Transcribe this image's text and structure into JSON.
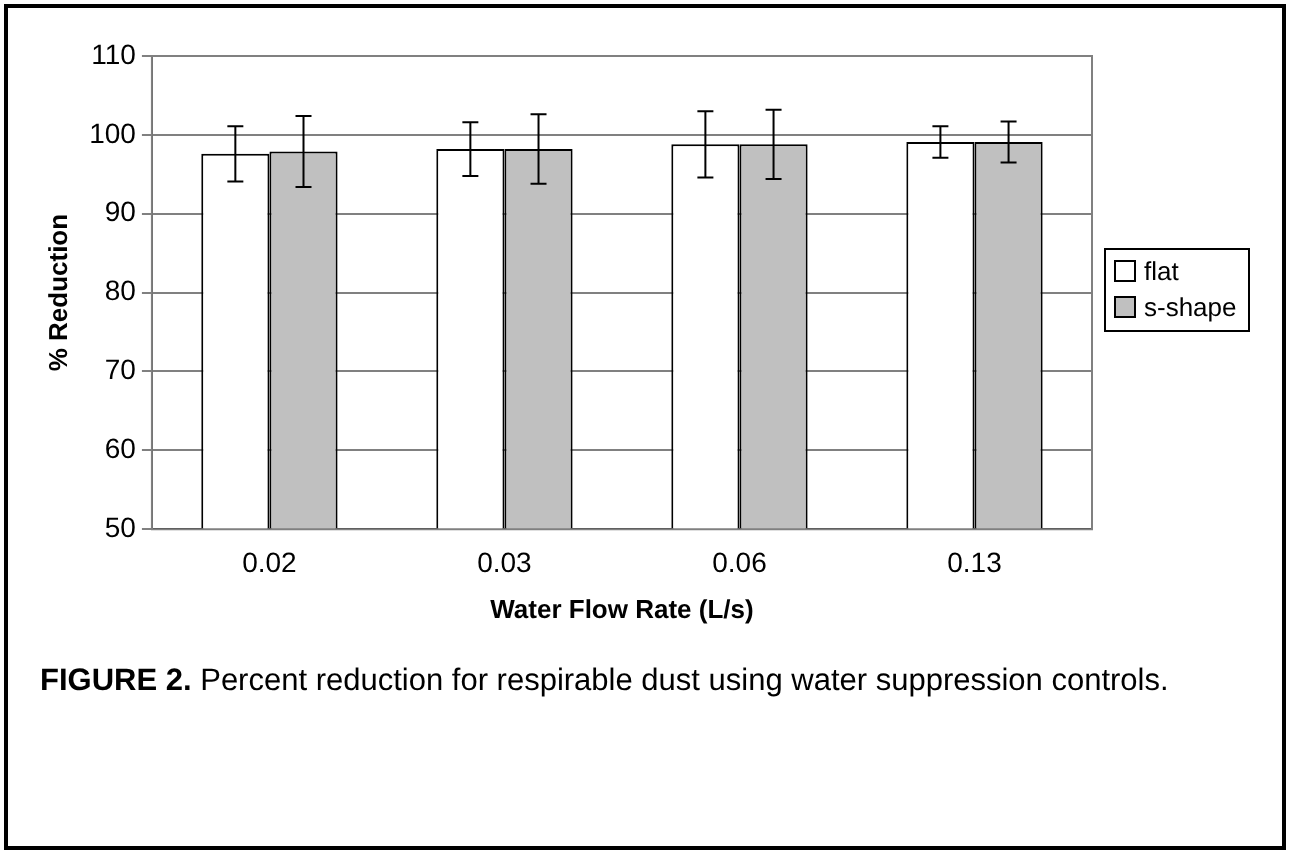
{
  "chart_data": {
    "type": "bar",
    "xlabel": "Water Flow Rate (L/s)",
    "ylabel": "% Reduction",
    "categories": [
      "0.02",
      "0.03",
      "0.06",
      "0.13"
    ],
    "series": [
      {
        "name": "flat",
        "color": "#ffffff",
        "values": [
          97.6,
          98.2,
          98.8,
          99.1
        ],
        "errors": [
          3.5,
          3.4,
          4.2,
          2.0
        ]
      },
      {
        "name": "s-shape",
        "color": "#c0c0c0",
        "values": [
          97.9,
          98.2,
          98.8,
          99.1
        ],
        "errors": [
          4.5,
          4.4,
          4.4,
          2.6
        ]
      }
    ],
    "ylim": [
      50,
      110
    ],
    "yticks": [
      50,
      60,
      70,
      80,
      90,
      100,
      110
    ],
    "grid": "y",
    "legend": "right",
    "annotations": [
      "FIGURE 2.  Percent reduction for respirable dust using water suppression controls."
    ]
  }
}
